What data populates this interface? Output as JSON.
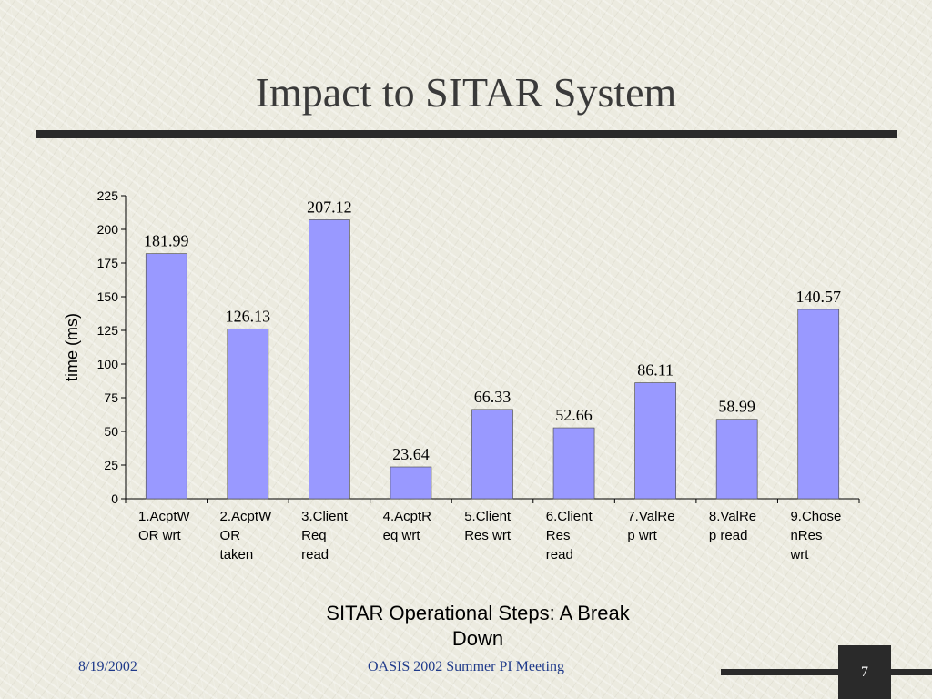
{
  "slide": {
    "title": "Impact to SITAR System",
    "footer_date": "8/19/2002",
    "footer_meeting": "OASIS 2002 Summer PI Meeting",
    "page_number": "7"
  },
  "colors": {
    "bar_fill": "#9999ff",
    "title_rule": "#2a2a2a",
    "footer_text": "#1f3a8a"
  },
  "chart_data": {
    "type": "bar",
    "title": "SITAR Operational Steps: A Break Down",
    "xlabel": "SITAR Operational Steps: A Break Down",
    "ylabel": "time (ms)",
    "categories": [
      [
        "1.AcptW",
        "OR wrt"
      ],
      [
        "2.AcptW",
        "OR",
        "taken"
      ],
      [
        "3.Client",
        "Req",
        "read"
      ],
      [
        "4.AcptR",
        "eq wrt"
      ],
      [
        "5.Client",
        "Res wrt"
      ],
      [
        "6.Client",
        "Res",
        "read"
      ],
      [
        "7.ValRe",
        "p wrt"
      ],
      [
        "8.ValRe",
        "p read"
      ],
      [
        "9.Chose",
        "nRes",
        "wrt"
      ]
    ],
    "values": [
      181.99,
      126.13,
      207.12,
      23.64,
      66.33,
      52.66,
      86.11,
      58.99,
      140.57
    ],
    "data_labels": [
      "181.99",
      "126.13",
      "207.12",
      "23.64",
      "66.33",
      "52.66",
      "86.11",
      "58.99",
      "140.57"
    ],
    "yticks": [
      0,
      25,
      50,
      75,
      100,
      125,
      150,
      175,
      200,
      225
    ],
    "ylim": [
      0,
      225
    ],
    "grid": false,
    "legend": "none"
  }
}
